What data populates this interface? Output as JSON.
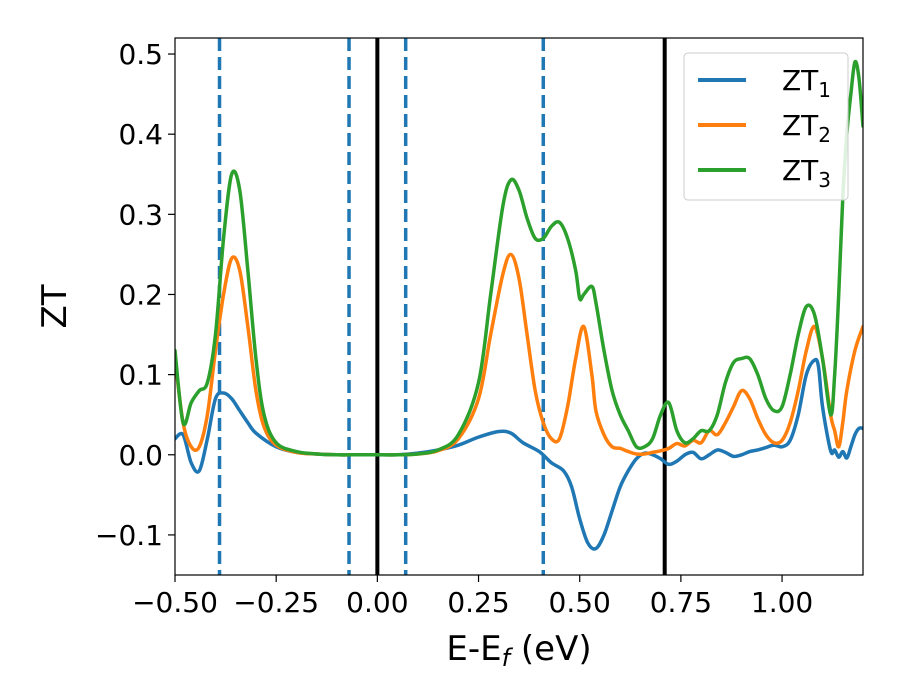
{
  "chart_data": {
    "type": "line",
    "title": "",
    "xlabel": "E-E",
    "xlabel_sub": "f",
    "xlabel_unit": " (eV)",
    "ylabel": "ZT",
    "xlim": [
      -0.5,
      1.2
    ],
    "ylim": [
      -0.15,
      0.52
    ],
    "grid": false,
    "legend_position": "top-right",
    "x_ticks": [
      {
        "value": -0.5,
        "label": "−0.50"
      },
      {
        "value": -0.25,
        "label": "−0.25"
      },
      {
        "value": 0.0,
        "label": "0.00"
      },
      {
        "value": 0.25,
        "label": "0.25"
      },
      {
        "value": 0.5,
        "label": "0.50"
      },
      {
        "value": 0.75,
        "label": "0.75"
      },
      {
        "value": 1.0,
        "label": "1.00"
      }
    ],
    "y_ticks": [
      {
        "value": -0.1,
        "label": "−0.1"
      },
      {
        "value": 0.0,
        "label": "0.0"
      },
      {
        "value": 0.1,
        "label": "0.1"
      },
      {
        "value": 0.2,
        "label": "0.2"
      },
      {
        "value": 0.3,
        "label": "0.3"
      },
      {
        "value": 0.4,
        "label": "0.4"
      },
      {
        "value": 0.5,
        "label": "0.5"
      }
    ],
    "vertical_lines": [
      {
        "x": -0.39,
        "style": "dashed",
        "color": "#1f77b4"
      },
      {
        "x": -0.07,
        "style": "dashed",
        "color": "#1f77b4"
      },
      {
        "x": 0.0,
        "style": "solid",
        "color": "#000000"
      },
      {
        "x": 0.07,
        "style": "dashed",
        "color": "#1f77b4"
      },
      {
        "x": 0.41,
        "style": "dashed",
        "color": "#1f77b4"
      },
      {
        "x": 0.71,
        "style": "solid",
        "color": "#000000"
      }
    ],
    "series": [
      {
        "name": "ZT",
        "name_sub": "1",
        "color": "#1f77b4",
        "x": [
          -0.5,
          -0.48,
          -0.46,
          -0.44,
          -0.42,
          -0.4,
          -0.38,
          -0.36,
          -0.34,
          -0.32,
          -0.3,
          -0.25,
          -0.2,
          -0.15,
          -0.1,
          -0.05,
          0.0,
          0.05,
          0.1,
          0.15,
          0.2,
          0.25,
          0.3,
          0.33,
          0.36,
          0.4,
          0.43,
          0.46,
          0.48,
          0.5,
          0.52,
          0.54,
          0.56,
          0.58,
          0.6,
          0.62,
          0.64,
          0.66,
          0.68,
          0.7,
          0.72,
          0.74,
          0.76,
          0.78,
          0.8,
          0.82,
          0.84,
          0.86,
          0.88,
          0.9,
          0.92,
          0.94,
          0.96,
          0.98,
          1.0,
          1.02,
          1.04,
          1.06,
          1.08,
          1.09,
          1.1,
          1.12,
          1.13,
          1.14,
          1.15,
          1.16,
          1.17,
          1.18,
          1.19,
          1.2
        ],
        "y": [
          0.02,
          0.025,
          -0.01,
          -0.02,
          0.02,
          0.07,
          0.077,
          0.07,
          0.055,
          0.04,
          0.027,
          0.01,
          0.003,
          0.001,
          0.0,
          0.0,
          0.0,
          0.0,
          0.002,
          0.006,
          0.012,
          0.022,
          0.029,
          0.027,
          0.015,
          0.004,
          -0.01,
          -0.02,
          -0.04,
          -0.08,
          -0.11,
          -0.117,
          -0.1,
          -0.07,
          -0.04,
          -0.02,
          -0.005,
          0.002,
          0.0,
          -0.005,
          -0.012,
          -0.008,
          0.0,
          0.003,
          -0.005,
          0.0,
          0.006,
          0.003,
          -0.002,
          0.0,
          0.004,
          0.006,
          0.009,
          0.012,
          0.01,
          0.018,
          0.05,
          0.1,
          0.118,
          0.11,
          0.06,
          0.005,
          0.006,
          -0.003,
          0.004,
          -0.004,
          0.01,
          0.025,
          0.033,
          0.033
        ]
      },
      {
        "name": "ZT",
        "name_sub": "2",
        "color": "#ff7f0e",
        "x": [
          -0.5,
          -0.48,
          -0.46,
          -0.44,
          -0.42,
          -0.4,
          -0.38,
          -0.36,
          -0.34,
          -0.32,
          -0.3,
          -0.28,
          -0.25,
          -0.2,
          -0.15,
          -0.1,
          -0.05,
          0.0,
          0.05,
          0.1,
          0.15,
          0.2,
          0.25,
          0.28,
          0.31,
          0.33,
          0.35,
          0.37,
          0.39,
          0.41,
          0.43,
          0.45,
          0.47,
          0.49,
          0.51,
          0.53,
          0.54,
          0.56,
          0.58,
          0.6,
          0.62,
          0.64,
          0.66,
          0.68,
          0.7,
          0.72,
          0.74,
          0.76,
          0.78,
          0.8,
          0.82,
          0.84,
          0.86,
          0.88,
          0.9,
          0.92,
          0.94,
          0.96,
          0.98,
          1.0,
          1.02,
          1.04,
          1.06,
          1.08,
          1.1,
          1.12,
          1.13,
          1.14,
          1.15,
          1.16,
          1.18,
          1.2
        ],
        "y": [
          0.12,
          0.04,
          0.01,
          0.01,
          0.05,
          0.13,
          0.2,
          0.245,
          0.23,
          0.16,
          0.08,
          0.035,
          0.012,
          0.003,
          0.001,
          0.0,
          0.0,
          0.0,
          0.0,
          0.001,
          0.005,
          0.02,
          0.07,
          0.15,
          0.225,
          0.25,
          0.22,
          0.15,
          0.08,
          0.04,
          0.02,
          0.02,
          0.06,
          0.12,
          0.16,
          0.1,
          0.055,
          0.025,
          0.01,
          0.008,
          0.004,
          0.001,
          0.001,
          0.003,
          0.005,
          0.008,
          0.014,
          0.011,
          0.018,
          0.015,
          0.03,
          0.025,
          0.04,
          0.06,
          0.08,
          0.07,
          0.045,
          0.025,
          0.015,
          0.018,
          0.04,
          0.08,
          0.13,
          0.16,
          0.12,
          0.05,
          0.03,
          0.01,
          0.04,
          0.08,
          0.13,
          0.16
        ]
      },
      {
        "name": "ZT",
        "name_sub": "3",
        "color": "#2ca02c",
        "x": [
          -0.5,
          -0.48,
          -0.46,
          -0.44,
          -0.42,
          -0.4,
          -0.38,
          -0.36,
          -0.34,
          -0.32,
          -0.3,
          -0.28,
          -0.25,
          -0.2,
          -0.15,
          -0.1,
          -0.05,
          0.0,
          0.05,
          0.1,
          0.15,
          0.2,
          0.25,
          0.28,
          0.31,
          0.33,
          0.35,
          0.37,
          0.39,
          0.41,
          0.43,
          0.45,
          0.47,
          0.49,
          0.5,
          0.51,
          0.53,
          0.54,
          0.56,
          0.58,
          0.6,
          0.62,
          0.64,
          0.66,
          0.68,
          0.7,
          0.72,
          0.74,
          0.76,
          0.78,
          0.8,
          0.82,
          0.84,
          0.86,
          0.88,
          0.9,
          0.92,
          0.94,
          0.96,
          0.98,
          1.0,
          1.02,
          1.04,
          1.06,
          1.08,
          1.1,
          1.12,
          1.13,
          1.14,
          1.15,
          1.16,
          1.17,
          1.18,
          1.19,
          1.2
        ],
        "y": [
          0.13,
          0.04,
          0.065,
          0.08,
          0.09,
          0.15,
          0.27,
          0.35,
          0.33,
          0.23,
          0.12,
          0.05,
          0.015,
          0.004,
          0.001,
          0.0,
          0.0,
          0.0,
          0.0,
          0.001,
          0.006,
          0.025,
          0.09,
          0.2,
          0.31,
          0.343,
          0.33,
          0.295,
          0.27,
          0.27,
          0.285,
          0.29,
          0.27,
          0.23,
          0.195,
          0.2,
          0.21,
          0.19,
          0.13,
          0.08,
          0.05,
          0.03,
          0.01,
          0.01,
          0.02,
          0.05,
          0.065,
          0.03,
          0.015,
          0.02,
          0.03,
          0.03,
          0.05,
          0.09,
          0.115,
          0.12,
          0.12,
          0.1,
          0.07,
          0.055,
          0.06,
          0.1,
          0.15,
          0.185,
          0.175,
          0.12,
          0.05,
          0.1,
          0.2,
          0.32,
          0.4,
          0.45,
          0.49,
          0.47,
          0.41
        ]
      }
    ]
  }
}
